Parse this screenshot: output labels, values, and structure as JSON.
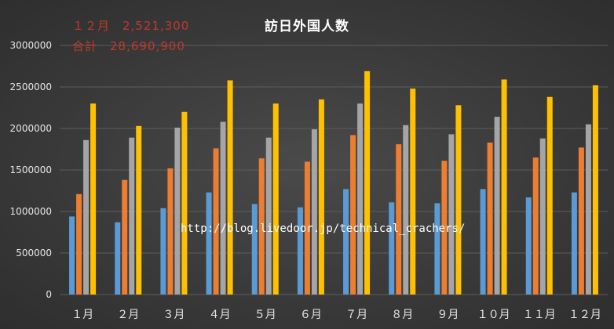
{
  "chart_data": {
    "type": "bar",
    "title": "訪日外国人数",
    "categories": [
      "１月",
      "２月",
      "３月",
      "４月",
      "５月",
      "６月",
      "７月",
      "８月",
      "９月",
      "１０月",
      "１１月",
      "１２月"
    ],
    "series": [
      {
        "values": [
          940000,
          870000,
          1040000,
          1230000,
          1090000,
          1050000,
          1270000,
          1110000,
          1100000,
          1270000,
          1170000,
          1230000
        ]
      },
      {
        "values": [
          1210000,
          1380000,
          1520000,
          1760000,
          1640000,
          1600000,
          1920000,
          1810000,
          1610000,
          1830000,
          1650000,
          1770000
        ]
      },
      {
        "values": [
          1860000,
          1890000,
          2010000,
          2080000,
          1890000,
          1990000,
          2300000,
          2040000,
          1930000,
          2140000,
          1880000,
          2050000
        ]
      },
      {
        "values": [
          2300000,
          2030000,
          2200000,
          2580000,
          2300000,
          2350000,
          2690000,
          2480000,
          2280000,
          2590000,
          2380000,
          2520000
        ]
      }
    ],
    "colors": [
      "#5b9bd5",
      "#ed7d31",
      "#a5a5a5",
      "#ffc000"
    ],
    "y_ticks": [
      "0",
      "500000",
      "1000000",
      "1500000",
      "2000000",
      "2500000",
      "3000000"
    ],
    "ylim": [
      0,
      3000000
    ],
    "grid": true,
    "legend": "none"
  },
  "annotations": {
    "line1": "１２月　2,521,300",
    "line2": "合計　28,690,900",
    "url": "http://blog.livedoor.jp/technical_crachers/"
  }
}
